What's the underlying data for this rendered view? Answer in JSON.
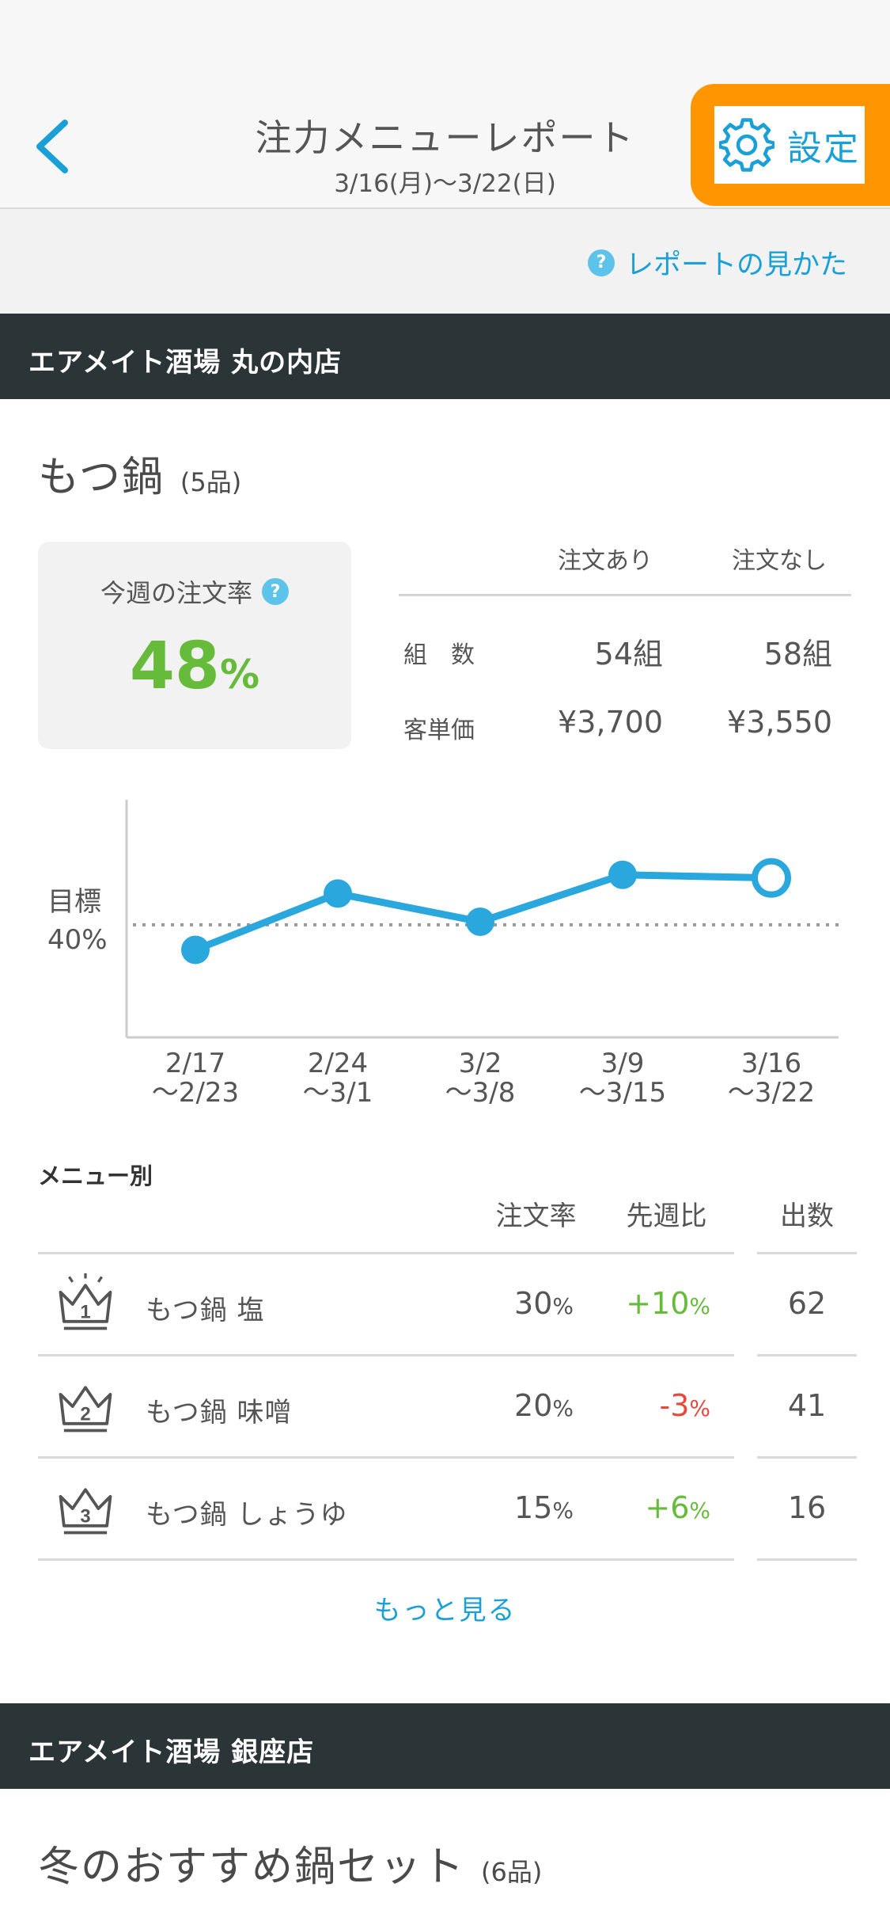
{
  "header": {
    "title": "注力メニューレポート",
    "subtitle": "3/16(月)〜3/22(日)",
    "settings_label": "設定"
  },
  "howto": {
    "label": "レポートの見かた"
  },
  "stores": [
    {
      "name": "エアメイト酒場 丸の内店",
      "menu_title": "もつ鍋",
      "menu_count": "(5品)",
      "rate_label": "今週の注文率",
      "rate_value": "48",
      "rate_unit": "%",
      "stats": {
        "col_headers": [
          "注文あり",
          "注文なし"
        ],
        "rows": [
          {
            "label": "組　数",
            "with": "54組",
            "without": "58組"
          },
          {
            "label": "客単価",
            "with": "¥3,700",
            "without": "¥3,550"
          }
        ]
      }
    },
    {
      "name": "エアメイト酒場 銀座店",
      "menu_title": "冬のおすすめ鍋セット",
      "menu_count": "(6品)"
    }
  ],
  "chart_data": {
    "type": "line",
    "target_label_line1": "目標",
    "target_label_line2": "40%",
    "target": 40,
    "categories": [
      [
        "2/17",
        "〜2/23"
      ],
      [
        "2/24",
        "〜3/1"
      ],
      [
        "3/2",
        "〜3/8"
      ],
      [
        "3/9",
        "〜3/15"
      ],
      [
        "3/16",
        "〜3/22"
      ]
    ],
    "values": [
      36,
      45,
      40.5,
      48,
      47.5
    ],
    "ylim": [
      22,
      60
    ],
    "current_index": 4,
    "color": "#2aa8de",
    "target_color": "#999999"
  },
  "menu_table": {
    "section_label": "メニュー別",
    "headers": {
      "rate": "注文率",
      "wow": "先週比",
      "count": "出数"
    },
    "rows": [
      {
        "rank": "1",
        "name": "もつ鍋 塩",
        "rate": "30",
        "wow": "+10",
        "wow_sign": "positive",
        "count": "62"
      },
      {
        "rank": "2",
        "name": "もつ鍋 味噌",
        "rate": "20",
        "wow": "-3",
        "wow_sign": "negative",
        "count": "41"
      },
      {
        "rank": "3",
        "name": "もつ鍋 しょうゆ",
        "rate": "15",
        "wow": "+6",
        "wow_sign": "positive",
        "count": "16"
      }
    ],
    "pct_unit": "%",
    "more_label": "もっと見る",
    "positive_color": "#67bb3a",
    "negative_color": "#e64a3c"
  }
}
